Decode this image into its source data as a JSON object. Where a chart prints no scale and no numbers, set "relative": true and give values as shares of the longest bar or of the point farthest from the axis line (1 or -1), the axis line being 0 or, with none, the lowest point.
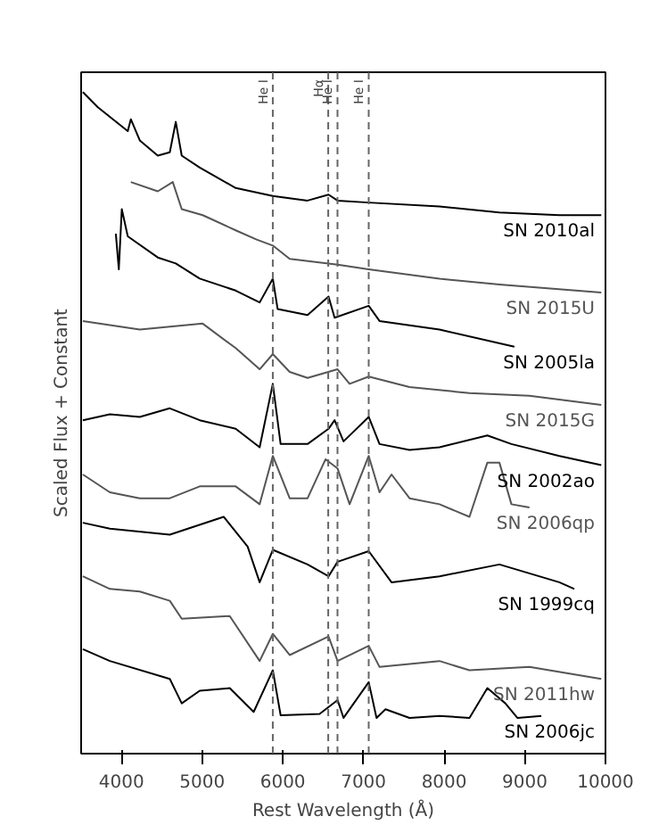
{
  "chart_data": {
    "type": "line",
    "relative": true,
    "xlabel": "Rest Wavelength (Å)",
    "ylabel": "Scaled Flux + Constant",
    "xlim": [
      3500,
      10000
    ],
    "xticks": [
      4000,
      5000,
      6000,
      7000,
      8000,
      9000,
      10000
    ],
    "grid": false,
    "marker": "none",
    "line_style": "solid",
    "ref_lines": [
      {
        "axis": "x",
        "value": 5876,
        "label": "He I",
        "color": "#666666",
        "line_style": "dashed"
      },
      {
        "axis": "x",
        "value": 6563,
        "label": "Hα",
        "color": "#666666",
        "line_style": "dashed"
      },
      {
        "axis": "x",
        "value": 6678,
        "label": "He I",
        "color": "#666666",
        "line_style": "dashed"
      },
      {
        "axis": "x",
        "value": 7065,
        "label": "He I",
        "color": "#666666",
        "line_style": "dashed"
      }
    ],
    "series": [
      {
        "name": "SN 2010al",
        "color": "#000000",
        "x": [
          3521,
          3707,
          4078,
          4116,
          4227,
          4450,
          4599,
          4673,
          4747,
          4970,
          5416,
          5876,
          6307,
          6567,
          6679,
          7065,
          7942,
          8685,
          9428,
          9948
        ],
        "values": [
          1.0,
          0.977,
          0.941,
          0.959,
          0.927,
          0.904,
          0.909,
          0.955,
          0.904,
          0.886,
          0.855,
          0.843,
          0.836,
          0.845,
          0.836,
          0.833,
          0.827,
          0.818,
          0.814,
          0.814
        ]
      },
      {
        "name": "SN 2015U",
        "color": "#555555",
        "x": [
          4116,
          4450,
          4636,
          4747,
          5007,
          5416,
          5676,
          5876,
          6085,
          6679,
          7065,
          7942,
          8685,
          9948
        ],
        "values": [
          0.864,
          0.85,
          0.864,
          0.823,
          0.814,
          0.791,
          0.777,
          0.768,
          0.748,
          0.739,
          0.732,
          0.718,
          0.709,
          0.697
        ]
      },
      {
        "name": "SN 2005la",
        "color": "#000000",
        "x": [
          3930,
          3967,
          4004,
          4078,
          4450,
          4673,
          4970,
          5416,
          5713,
          5876,
          5936,
          6307,
          6567,
          6642,
          7065,
          7199,
          7942,
          8871
        ],
        "values": [
          0.786,
          0.732,
          0.823,
          0.782,
          0.75,
          0.741,
          0.718,
          0.7,
          0.682,
          0.718,
          0.672,
          0.663,
          0.691,
          0.659,
          0.677,
          0.654,
          0.641,
          0.615
        ]
      },
      {
        "name": "SN 2015G",
        "color": "#555555",
        "x": [
          3521,
          4227,
          5007,
          5416,
          5713,
          5876,
          6085,
          6307,
          6679,
          6828,
          7065,
          7571,
          8314,
          9057,
          9948
        ],
        "values": [
          0.654,
          0.641,
          0.65,
          0.613,
          0.581,
          0.604,
          0.577,
          0.568,
          0.581,
          0.559,
          0.57,
          0.554,
          0.545,
          0.541,
          0.527
        ]
      },
      {
        "name": "SN 2002ao",
        "color": "#000000",
        "x": [
          3521,
          3856,
          4227,
          4599,
          4970,
          5416,
          5713,
          5876,
          5973,
          6307,
          6567,
          6642,
          6753,
          7065,
          7199,
          7571,
          7942,
          8536,
          8834,
          9428,
          9948
        ],
        "values": [
          0.504,
          0.513,
          0.509,
          0.522,
          0.504,
          0.491,
          0.463,
          0.559,
          0.468,
          0.468,
          0.491,
          0.504,
          0.472,
          0.509,
          0.468,
          0.459,
          0.463,
          0.481,
          0.468,
          0.45,
          0.436
        ]
      },
      {
        "name": "SN 2006qp",
        "color": "#555555",
        "x": [
          3521,
          3856,
          4227,
          4599,
          4970,
          5416,
          5713,
          5876,
          6085,
          6307,
          6530,
          6679,
          6828,
          7065,
          7199,
          7348,
          7571,
          7942,
          8314,
          8536,
          8685,
          8834,
          9057
        ],
        "values": [
          0.422,
          0.395,
          0.386,
          0.386,
          0.404,
          0.404,
          0.377,
          0.45,
          0.386,
          0.386,
          0.445,
          0.431,
          0.377,
          0.45,
          0.395,
          0.422,
          0.386,
          0.377,
          0.358,
          0.44,
          0.44,
          0.377,
          0.372
        ]
      },
      {
        "name": "SN 1999cq",
        "color": "#000000",
        "x": [
          3521,
          3856,
          4599,
          5267,
          5564,
          5713,
          5876,
          6307,
          6567,
          6679,
          7065,
          7348,
          7942,
          8685,
          9428,
          9614
        ],
        "values": [
          0.349,
          0.34,
          0.331,
          0.358,
          0.313,
          0.259,
          0.308,
          0.286,
          0.268,
          0.29,
          0.306,
          0.259,
          0.268,
          0.286,
          0.259,
          0.249
        ]
      },
      {
        "name": "SN 2011hw",
        "color": "#555555",
        "x": [
          3521,
          3856,
          4227,
          4599,
          4747,
          5342,
          5713,
          5876,
          6085,
          6567,
          6679,
          7065,
          7199,
          7942,
          8314,
          9057,
          9948
        ],
        "values": [
          0.268,
          0.249,
          0.245,
          0.231,
          0.204,
          0.208,
          0.14,
          0.181,
          0.149,
          0.177,
          0.14,
          0.163,
          0.131,
          0.14,
          0.126,
          0.131,
          0.113
        ]
      },
      {
        "name": "SN 2006jc",
        "color": "#000000",
        "x": [
          3521,
          3856,
          4599,
          4747,
          4970,
          5342,
          5639,
          5876,
          5973,
          6456,
          6679,
          6753,
          7065,
          7162,
          7273,
          7571,
          7942,
          8314,
          8536,
          8759,
          8908,
          9205
        ],
        "values": [
          0.158,
          0.14,
          0.113,
          0.076,
          0.095,
          0.099,
          0.063,
          0.126,
          0.058,
          0.06,
          0.081,
          0.054,
          0.108,
          0.054,
          0.067,
          0.054,
          0.057,
          0.054,
          0.099,
          0.076,
          0.054,
          0.057
        ]
      }
    ]
  }
}
